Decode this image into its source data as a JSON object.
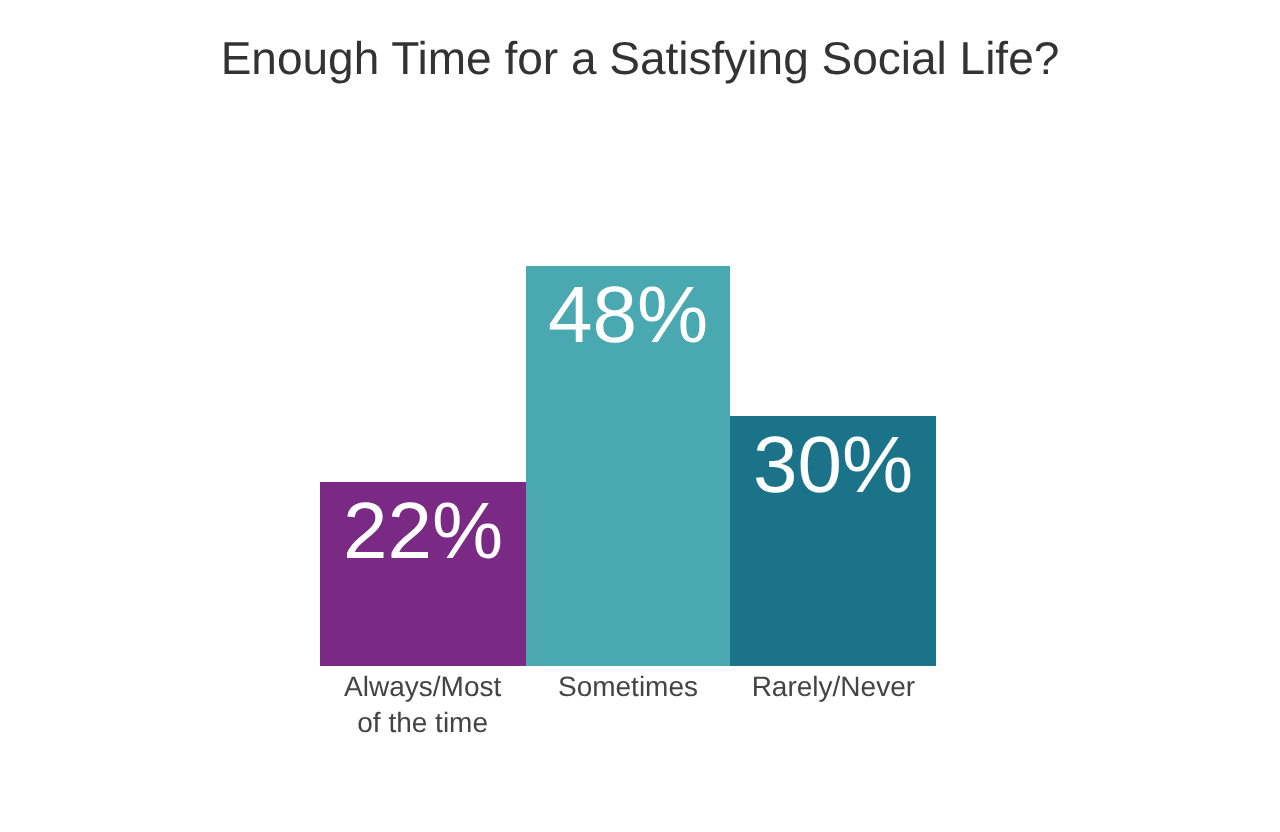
{
  "chart_data": {
    "type": "bar",
    "title": "Enough Time for a Satisfying Social Life?",
    "categories": [
      "Always/Most\nof the time",
      "Sometimes",
      "Rarely/Never"
    ],
    "values": [
      22,
      48,
      30
    ],
    "colors": [
      "#7a2a84",
      "#4aa8b0",
      "#1a7389"
    ],
    "value_labels": [
      "22%",
      "48%",
      "30%"
    ]
  }
}
